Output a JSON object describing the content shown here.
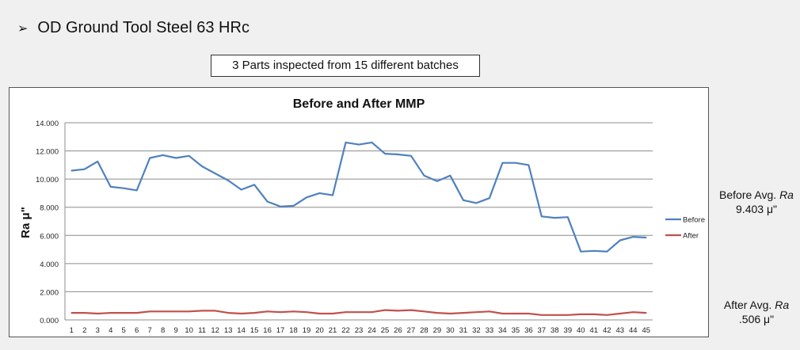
{
  "heading": {
    "bullet": "➢",
    "text": "OD Ground Tool Steel 63 HRc"
  },
  "note": "3 Parts inspected from 15 different batches",
  "side_notes": {
    "before_label": "Before Avg.",
    "before_label_italic": "Ra",
    "before_value": "9.403 μ\"",
    "after_label": "After Avg.",
    "after_label_italic": "Ra",
    "after_value": ".506 μ\""
  },
  "chart_data": {
    "type": "line",
    "title": "Before and After MMP",
    "xlabel": "",
    "ylabel": "Ra μ\"",
    "x": [
      1,
      2,
      3,
      4,
      5,
      6,
      7,
      8,
      9,
      10,
      11,
      12,
      13,
      14,
      15,
      16,
      17,
      18,
      19,
      20,
      21,
      22,
      23,
      24,
      25,
      26,
      27,
      28,
      29,
      30,
      31,
      32,
      33,
      34,
      35,
      36,
      37,
      38,
      39,
      40,
      41,
      42,
      43,
      44,
      45
    ],
    "ylim": [
      0,
      14
    ],
    "yticks": [
      "0.000",
      "2.000",
      "4.000",
      "6.000",
      "8.000",
      "10.000",
      "12.000",
      "14.000"
    ],
    "grid": true,
    "legend": "right",
    "series": [
      {
        "name": "Before",
        "color": "#4f81bd",
        "values": [
          10.6,
          10.7,
          11.25,
          9.45,
          9.35,
          9.2,
          11.5,
          11.7,
          11.5,
          11.65,
          10.9,
          10.4,
          9.9,
          9.25,
          9.6,
          8.4,
          8.05,
          8.1,
          8.7,
          9.0,
          8.85,
          12.6,
          12.45,
          12.6,
          11.8,
          11.75,
          11.65,
          10.25,
          9.85,
          10.25,
          8.5,
          8.3,
          8.65,
          11.15,
          11.15,
          11.0,
          7.35,
          7.25,
          7.3,
          4.85,
          4.9,
          4.85,
          5.65,
          5.9,
          5.85
        ]
      },
      {
        "name": "After",
        "color": "#c0504d",
        "values": [
          0.5,
          0.5,
          0.45,
          0.5,
          0.5,
          0.5,
          0.6,
          0.6,
          0.6,
          0.6,
          0.65,
          0.65,
          0.5,
          0.45,
          0.5,
          0.6,
          0.55,
          0.6,
          0.55,
          0.45,
          0.45,
          0.55,
          0.55,
          0.55,
          0.7,
          0.65,
          0.7,
          0.6,
          0.5,
          0.45,
          0.5,
          0.55,
          0.6,
          0.45,
          0.45,
          0.45,
          0.35,
          0.35,
          0.35,
          0.4,
          0.4,
          0.35,
          0.45,
          0.55,
          0.5
        ]
      }
    ]
  }
}
